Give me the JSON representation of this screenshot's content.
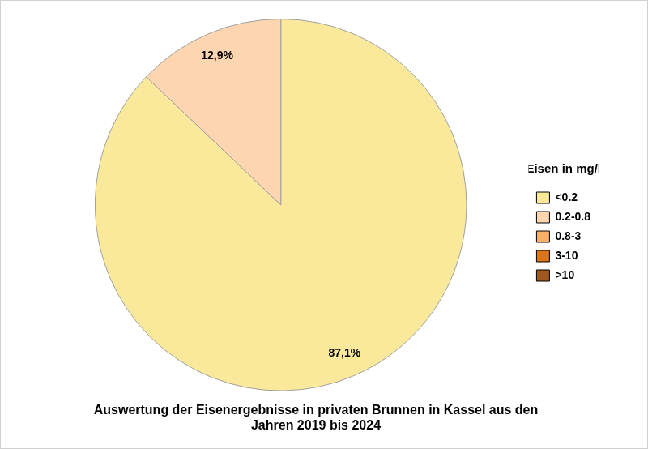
{
  "chart_data": {
    "type": "pie",
    "title": "Auswertung der Eisenergebnisse in privaten Brunnen in Kassel aus den\nJahren 2019 bis 2024",
    "legend_title": "Eisen in mg/l",
    "categories": [
      "<0.2",
      "0.2-0.8",
      "0.8-3",
      "3-10",
      ">10"
    ],
    "values": [
      87.1,
      12.9,
      0,
      0,
      0
    ],
    "value_labels": [
      "87,1%",
      "12,9%",
      null,
      null,
      null
    ],
    "colors": [
      "#FAE89B",
      "#FDD5B1",
      "#F8B068",
      "#D9761A",
      "#9E5A1E"
    ],
    "legend": "right",
    "data_labels": true
  }
}
